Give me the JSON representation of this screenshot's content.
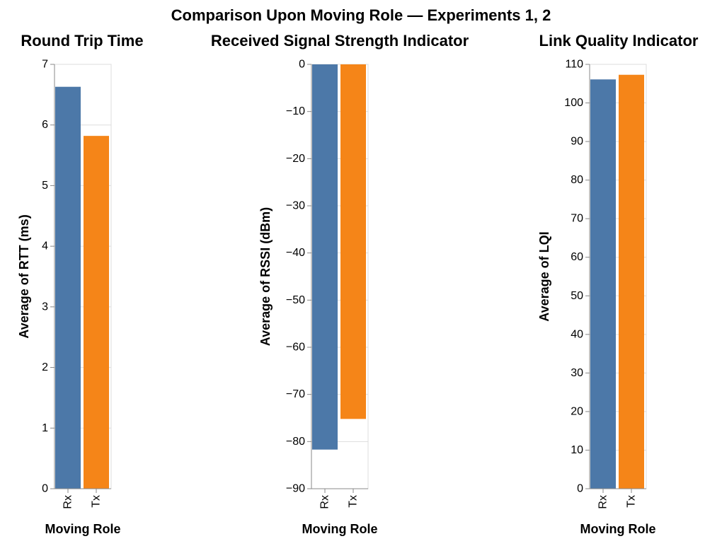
{
  "title": "Comparison Upon Moving Role — Experiments 1, 2",
  "colors": {
    "Rx": "#4c78a8",
    "Tx": "#f58518",
    "grid": "#dddddd",
    "axis": "#888888"
  },
  "chart_data": [
    {
      "type": "bar",
      "title": "Round Trip Time",
      "xlabel": "Moving Role",
      "ylabel": "Average of RTT (ms)",
      "categories": [
        "Rx",
        "Tx"
      ],
      "values": [
        6.63,
        5.82
      ],
      "ylim": [
        0,
        7
      ],
      "yticks": [
        0,
        1,
        2,
        3,
        4,
        5,
        6,
        7
      ],
      "grid": true
    },
    {
      "type": "bar",
      "title": "Received Signal Strength Indicator",
      "xlabel": "Moving Role",
      "ylabel": "Average of RSSI (dBm)",
      "categories": [
        "Rx",
        "Tx"
      ],
      "values": [
        -81.7,
        -75.2
      ],
      "ylim": [
        -90,
        0
      ],
      "yticks": [
        0,
        -10,
        -20,
        -30,
        -40,
        -50,
        -60,
        -70,
        -80,
        -90
      ],
      "grid": true
    },
    {
      "type": "bar",
      "title": "Link Quality Indicator",
      "xlabel": "Moving Role",
      "ylabel": "Average of LQI",
      "categories": [
        "Rx",
        "Tx"
      ],
      "values": [
        106.1,
        107.3
      ],
      "ylim": [
        0,
        110
      ],
      "yticks": [
        0,
        10,
        20,
        30,
        40,
        50,
        60,
        70,
        80,
        90,
        100,
        110
      ],
      "grid": true
    }
  ]
}
